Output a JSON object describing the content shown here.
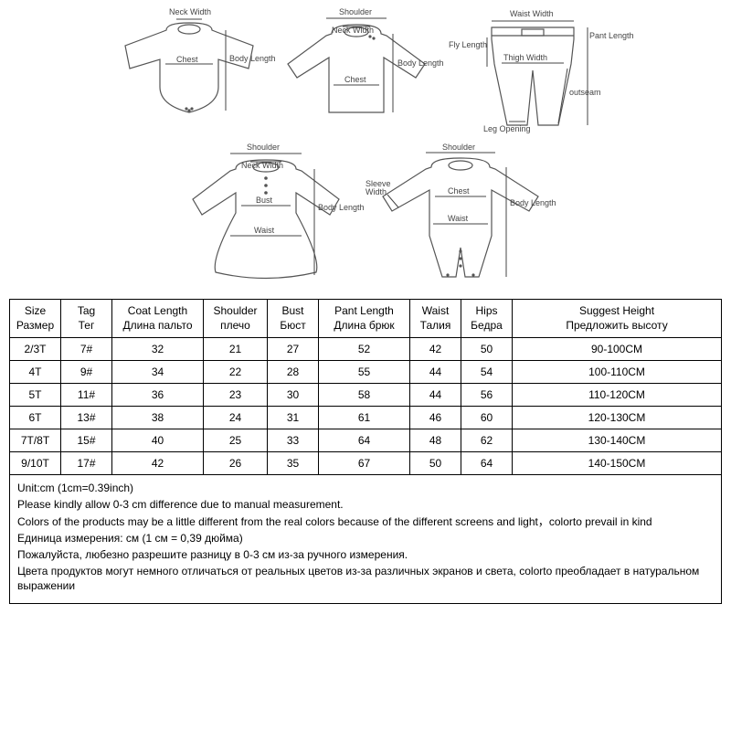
{
  "diagrams": {
    "bodysuit": {
      "neck_width": "Neck Width",
      "body_length": "Body Length",
      "chest": "Chest"
    },
    "top": {
      "shoulder": "Shoulder",
      "neck_width": "Neck Width",
      "body_length": "Body Length",
      "chest": "Chest"
    },
    "pants": {
      "waist_width": "Waist Width",
      "fly_length": "Fly Length",
      "pant_length": "Pant Length",
      "thigh_width": "Thigh Width",
      "outseam": "outseam",
      "leg_opening": "Leg Opening"
    },
    "dress": {
      "shoulder": "Shoulder",
      "neck_width": "Neck Width",
      "body_length": "Body Length",
      "bust": "Bust",
      "waist": "Waist"
    },
    "romper": {
      "shoulder": "Shoulder",
      "sleeve_width": "Sleeve Width",
      "body_length": "Body Length",
      "chest": "Chest",
      "waist": "Waist"
    }
  },
  "table": {
    "headers": [
      {
        "en": "Size",
        "ru": "Размер"
      },
      {
        "en": "Tag",
        "ru": "Тег"
      },
      {
        "en": "Coat Length",
        "ru": "Длина пальто"
      },
      {
        "en": "Shoulder",
        "ru": "плечо"
      },
      {
        "en": "Bust",
        "ru": "Бюст"
      },
      {
        "en": "Pant Length",
        "ru": "Длина брюк"
      },
      {
        "en": "Waist",
        "ru": "Талия"
      },
      {
        "en": "Hips",
        "ru": "Бедра"
      },
      {
        "en": "Suggest Height",
        "ru": "Предложить высоту"
      }
    ],
    "rows": [
      [
        "2/3T",
        "7#",
        "32",
        "21",
        "27",
        "52",
        "42",
        "50",
        "90-100CM"
      ],
      [
        "4T",
        "9#",
        "34",
        "22",
        "28",
        "55",
        "44",
        "54",
        "100-110CM"
      ],
      [
        "5T",
        "11#",
        "36",
        "23",
        "30",
        "58",
        "44",
        "56",
        "110-120CM"
      ],
      [
        "6T",
        "13#",
        "38",
        "24",
        "31",
        "61",
        "46",
        "60",
        "120-130CM"
      ],
      [
        "7T/8T",
        "15#",
        "40",
        "25",
        "33",
        "64",
        "48",
        "62",
        "130-140CM"
      ],
      [
        "9/10T",
        "17#",
        "42",
        "26",
        "35",
        "67",
        "50",
        "64",
        "140-150CM"
      ]
    ],
    "col_widths": [
      "56px",
      "56px",
      "100px",
      "70px",
      "56px",
      "100px",
      "56px",
      "56px",
      "auto"
    ]
  },
  "notes": {
    "line1": "Unit:cm  (1cm=0.39inch)",
    "line2": "Please kindly allow 0-3 cm difference due to manual measurement.",
    "line3": "Colors of the products may be a little different from the real colors because of the different screens and light，colorto prevail in kind",
    "line4": "Единица измерения: см (1 см = 0,39 дюйма)",
    "line5": "Пожалуйста, любезно разрешите разницу в 0-3 см из-за ручного измерения.",
    "line6": "Цвета продуктов могут немного отличаться от реальных цветов из-за различных экранов и света, colorto преобладает в натуральном выражении"
  },
  "style": {
    "stroke": "#555555",
    "label_color": "#444444",
    "border_color": "#000000",
    "bg": "#ffffff"
  }
}
